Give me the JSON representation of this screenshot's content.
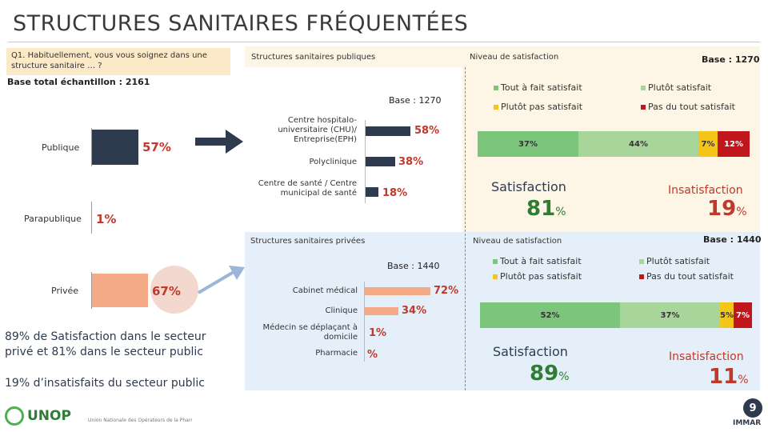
{
  "title": "STRUCTURES SANITAIRES FRÉQUENTÉES",
  "question": "Q1. Habituellement, vous vous soignez dans une structure sanitaire … ?",
  "base_total": "Base total échantillon : 2161",
  "sectors": [
    {
      "label": "Publique",
      "pct": "57%",
      "value": 57
    },
    {
      "label": "Parapublique",
      "pct": "1%",
      "value": 1
    },
    {
      "label": "Privée",
      "pct": "67%",
      "value": 67
    }
  ],
  "public": {
    "header": "Structures sanitaires publiques",
    "sat_header": "Niveau de satisfaction",
    "base_right": "Base : 1270",
    "base_left": "Base : 1270",
    "items": [
      {
        "label": "Centre hospitalo-universitaire (CHU)/ Entreprise(EPH)",
        "pct": "58%",
        "value": 58
      },
      {
        "label": "Polyclinique",
        "pct": "38%",
        "value": 38
      },
      {
        "label": "Centre de santé / Centre municipal de santé",
        "pct": "18%",
        "value": 18
      }
    ],
    "legend": [
      "Tout à fait satisfait",
      "Plutôt satisfait",
      "Plutôt pas satisfait",
      "Pas du tout satisfait"
    ],
    "segments": [
      {
        "label": "37%",
        "value": 37,
        "color": "#7bc67b"
      },
      {
        "label": "44%",
        "value": 44,
        "color": "#a8d59a"
      },
      {
        "label": "7%",
        "value": 7,
        "color": "#f5c518"
      },
      {
        "label": "12%",
        "value": 12,
        "color": "#c0161c"
      }
    ],
    "sat_label": "Satisfaction",
    "sat_value": "81",
    "insat_label": "Insatisfaction",
    "insat_value": "19",
    "unit": "%"
  },
  "private": {
    "header": "Structures sanitaires privées",
    "sat_header": "Niveau de satisfaction",
    "base_right": "Base : 1440",
    "base_left": "Base : 1440",
    "items": [
      {
        "label": "Cabinet médical",
        "pct": "72%",
        "value": 72
      },
      {
        "label": "Clinique",
        "pct": "34%",
        "value": 34
      },
      {
        "label": "Médecin se déplaçant à domicile",
        "pct": "1%",
        "value": 1
      },
      {
        "label": "Pharmacie",
        "pct": "%",
        "value": 0
      }
    ],
    "legend": [
      "Tout à fait satisfait",
      "Plutôt satisfait",
      "Plutôt pas satisfait",
      "Pas du tout satisfait"
    ],
    "segments": [
      {
        "label": "52%",
        "value": 52,
        "color": "#7bc67b"
      },
      {
        "label": "37%",
        "value": 37,
        "color": "#a8d59a"
      },
      {
        "label": "5%",
        "value": 5,
        "color": "#f5c518"
      },
      {
        "label": "7%",
        "value": 7,
        "color": "#c0161c"
      }
    ],
    "sat_label": "Satisfaction",
    "sat_value": "89",
    "insat_label": "Insatisfaction",
    "insat_value": "11",
    "unit": "%"
  },
  "notes": {
    "line1": "89% de Satisfaction dans le secteur privé et 81% dans le secteur public",
    "line2": "19% d’insatisfaits du secteur public"
  },
  "footer": {
    "logo_text": "UNOP",
    "logo_sub": "Union Nationale des Opérateurs de la Pharmacie",
    "page_number": "9",
    "immar": "IMMAR"
  },
  "colors": {
    "navy": "#2e3a4e",
    "orange": "#f4a987",
    "red": "#c0392b",
    "green_dark": "#7bc67b",
    "green_light": "#a8d59a",
    "yellow": "#f5c518",
    "red_dark": "#c0161c"
  }
}
